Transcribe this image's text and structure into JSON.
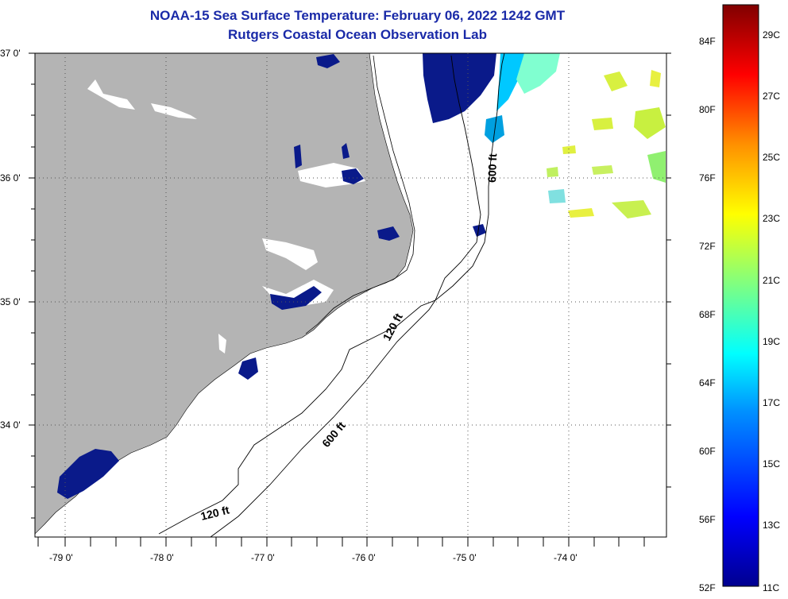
{
  "header": {
    "title_line1": "NOAA-15 Sea Surface Temperature:  February 06, 2022 1242 GMT",
    "title_line2": "Rutgers Coastal Ocean Observation Lab"
  },
  "map": {
    "lat_labels": [
      "37 0'",
      "36 0'",
      "35 0'",
      "34 0'"
    ],
    "lon_labels": [
      "-79 0'",
      "-78 0'",
      "-77 0'",
      "-76 0'",
      "-75 0'",
      "-74 0'"
    ],
    "contour_labels": {
      "c120_upper": "120 ft",
      "c600_upper": "600 ft",
      "c600_lower": "600 ft",
      "c120_lower": "120 ft"
    },
    "land_color": "#b4b4b4",
    "cold_water_color": "#0a1a8a"
  },
  "colorbar": {
    "fahrenheit_labels": [
      "84F",
      "80F",
      "76F",
      "72F",
      "68F",
      "64F",
      "60F",
      "56F",
      "52F"
    ],
    "celsius_labels": [
      "29C",
      "27C",
      "25C",
      "23C",
      "21C",
      "19C",
      "17C",
      "15C",
      "13C",
      "11C"
    ],
    "colors": [
      "#00008f",
      "#0000ff",
      "#00a0ff",
      "#00ffff",
      "#80ff80",
      "#ffff00",
      "#ff8000",
      "#ff0000",
      "#800000"
    ]
  }
}
